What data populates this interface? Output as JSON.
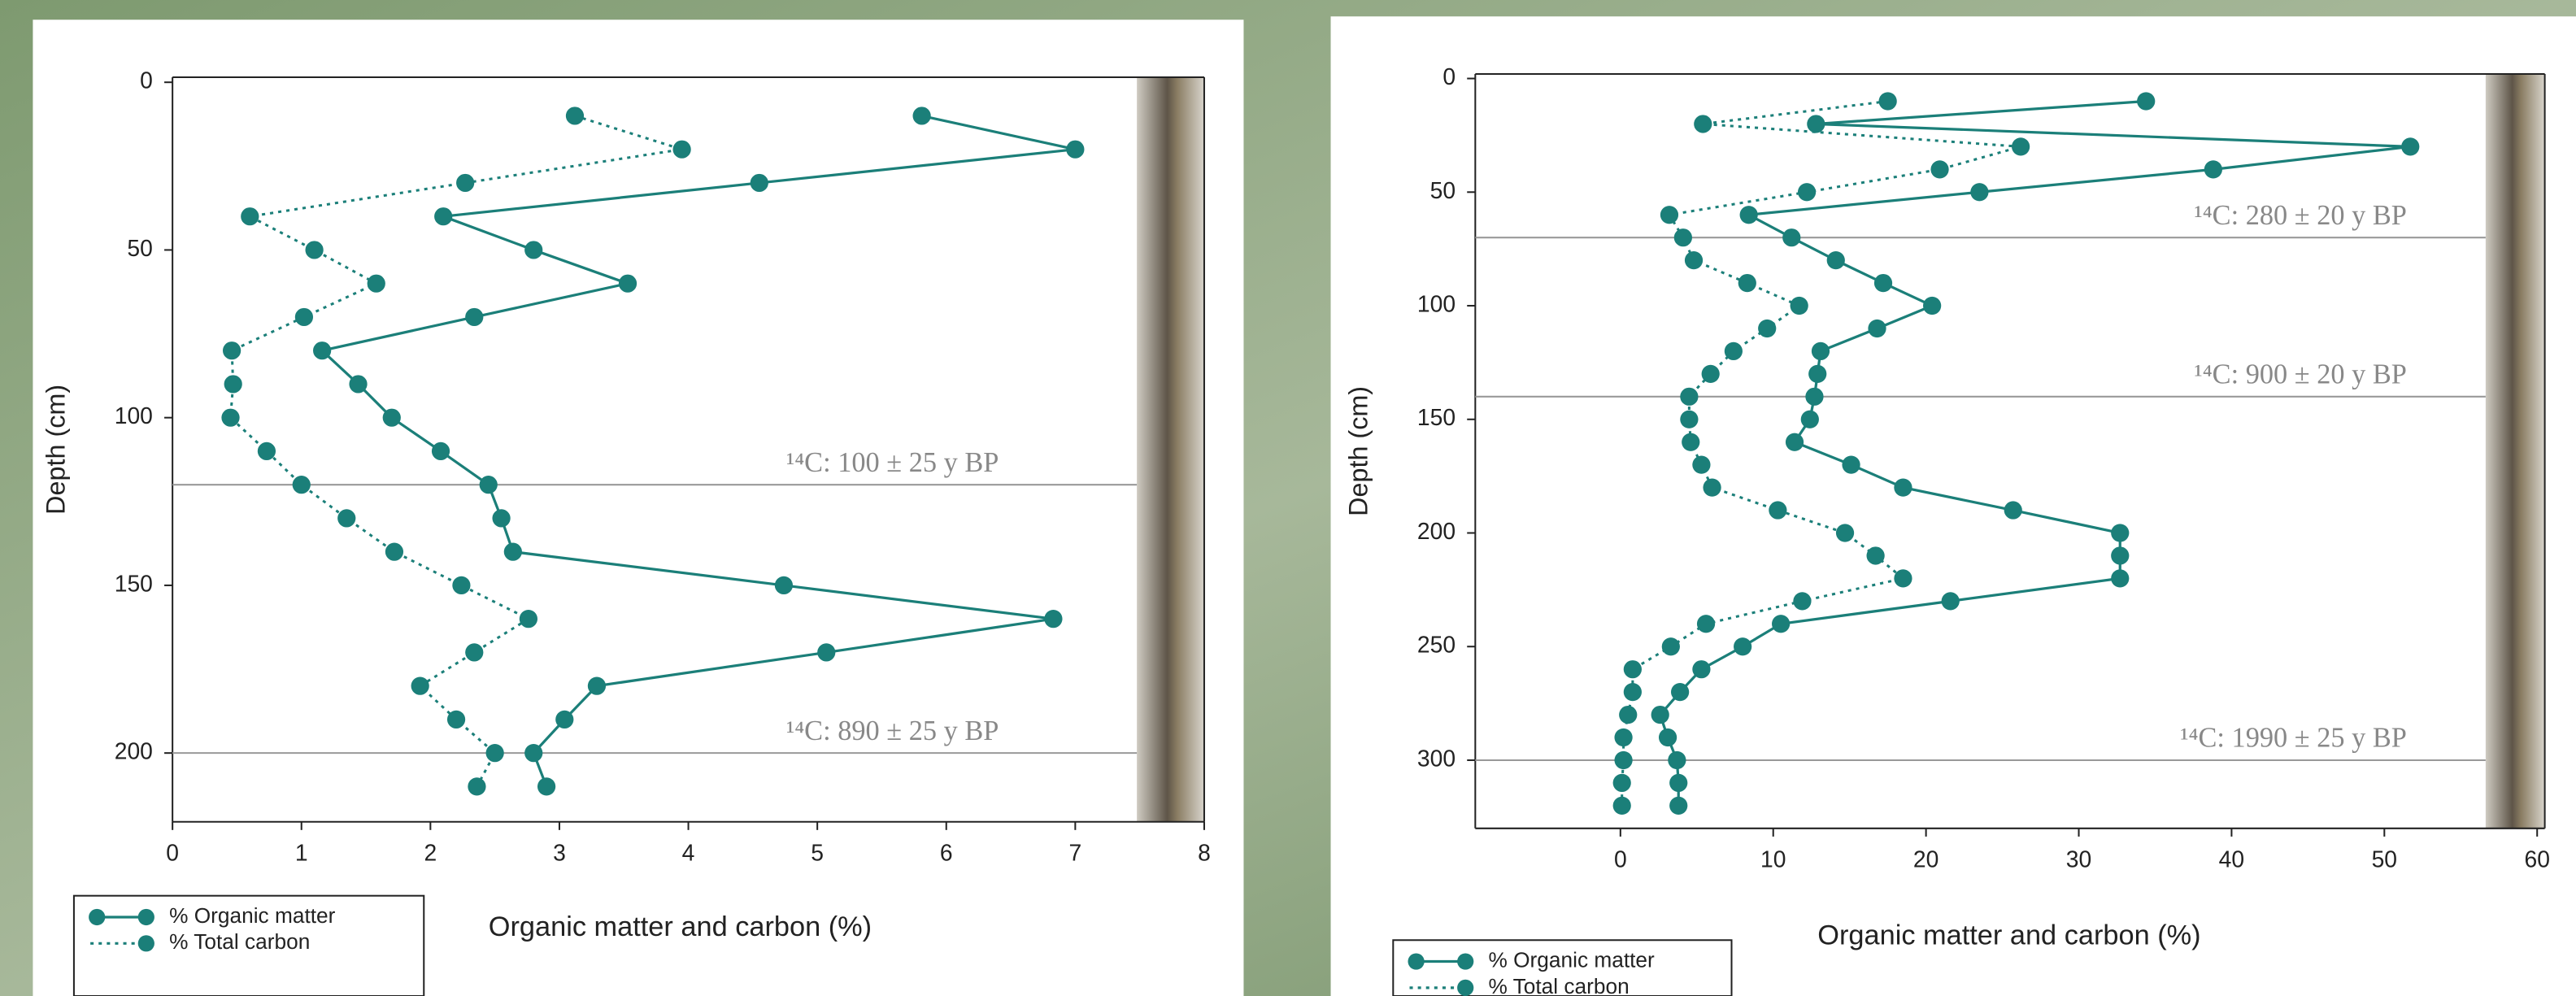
{
  "chart_data": [
    {
      "type": "line",
      "xlabel": "Organic matter and carbon (%)",
      "ylabel": "Depth (cm)",
      "xlim": [
        0,
        8
      ],
      "ylim": [
        -1.5,
        220.5
      ],
      "xticks": [
        0,
        1,
        2,
        3,
        4,
        5,
        6,
        7,
        8
      ],
      "yticks": [
        0,
        50,
        100,
        150,
        200
      ],
      "legend": "lower left",
      "y": [
        10,
        20,
        30,
        40,
        50,
        60,
        70,
        80,
        90,
        100,
        110,
        120,
        130,
        140,
        150,
        160,
        170,
        180,
        190,
        200,
        210
      ],
      "series": [
        {
          "name": "% Organic matter",
          "color": "#1b7f79",
          "dash": "solid",
          "values": [
            5.81,
            7.0,
            4.55,
            2.1,
            2.8,
            3.53,
            2.34,
            1.16,
            1.44,
            1.7,
            2.08,
            2.45,
            2.55,
            2.64,
            4.74,
            6.83,
            5.07,
            3.29,
            3.04,
            2.8,
            2.9
          ]
        },
        {
          "name": "% Total carbon",
          "color": "#1b7f79",
          "dash": "dotted",
          "values": [
            3.12,
            3.95,
            2.27,
            0.6,
            1.1,
            1.58,
            1.02,
            0.46,
            0.47,
            0.45,
            0.73,
            1.0,
            1.35,
            1.72,
            2.24,
            2.76,
            2.34,
            1.92,
            2.2,
            2.5,
            2.36
          ]
        }
      ],
      "reference_lines": [
        {
          "value": 120,
          "label": "¹⁴C: 100 ± 25 y BP"
        },
        {
          "value": 200,
          "label": "¹⁴C: 890 ± 25 y BP"
        }
      ]
    },
    {
      "type": "line",
      "xlabel": "Organic matter and carbon (%)",
      "ylabel": "Depth (cm)",
      "xlim": [
        -9.5,
        60.5
      ],
      "ylim": [
        -2,
        330
      ],
      "xticks": [
        0,
        10,
        20,
        30,
        40,
        50,
        60
      ],
      "yticks": [
        0,
        50,
        100,
        150,
        200,
        250,
        300
      ],
      "legend": "lower left",
      "y": [
        10,
        20,
        30,
        40,
        50,
        60,
        70,
        80,
        90,
        100,
        110,
        120,
        130,
        140,
        150,
        160,
        170,
        180,
        190,
        200,
        210,
        220,
        230,
        240,
        250,
        260,
        270,
        280,
        290,
        300,
        310,
        320
      ],
      "series": [
        {
          "name": "% Organic matter",
          "color": "#1b7f79",
          "dash": "solid",
          "values": [
            34.4,
            12.8,
            51.7,
            38.8,
            23.5,
            8.4,
            11.2,
            14.1,
            17.2,
            20.4,
            16.8,
            13.1,
            12.9,
            12.7,
            12.4,
            11.4,
            15.1,
            18.5,
            25.7,
            32.7,
            32.7,
            32.7,
            21.6,
            10.5,
            8.0,
            5.3,
            3.9,
            2.6,
            3.1,
            3.7,
            3.8,
            3.8
          ]
        },
        {
          "name": "% Total carbon",
          "color": "#1b7f79",
          "dash": "dotted",
          "values": [
            17.5,
            5.4,
            26.2,
            20.9,
            12.2,
            3.2,
            4.1,
            4.8,
            8.3,
            11.7,
            9.6,
            7.4,
            5.9,
            4.5,
            4.5,
            4.6,
            5.3,
            6.0,
            10.3,
            14.7,
            16.7,
            18.5,
            11.9,
            5.6,
            3.3,
            0.8,
            0.8,
            0.5,
            0.2,
            0.2,
            0.1,
            0.1
          ]
        }
      ],
      "reference_lines": [
        {
          "value": 70,
          "label": "¹⁴C: 280 ± 20 y BP"
        },
        {
          "value": 140,
          "label": "¹⁴C: 900 ± 20 y BP"
        },
        {
          "value": 300,
          "label": "¹⁴C: 1990 ± 25 y BP"
        }
      ]
    }
  ]
}
